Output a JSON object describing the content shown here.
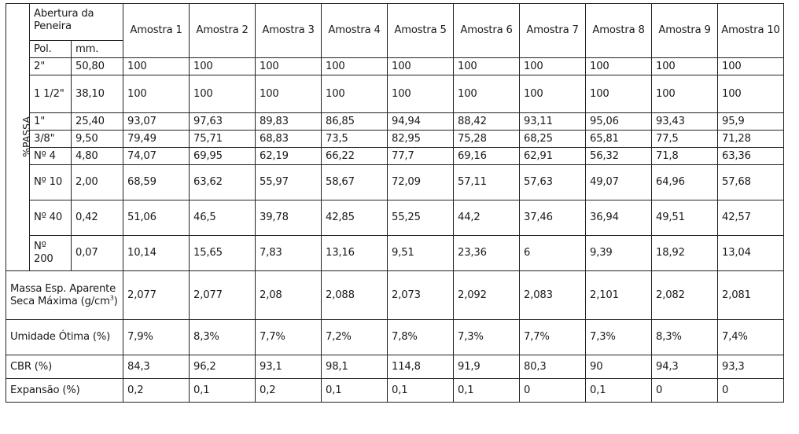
{
  "header": {
    "abertura": "Abertura da Peneira",
    "pol": "Pol.",
    "mm": "mm.",
    "amostras": [
      "Amostra 1",
      "Amostra 2",
      "Amostra 3",
      "Amostra 4",
      "Amostra 5",
      "Amostra 6",
      "Amostra 7",
      "Amostra 8",
      "Amostra 9",
      "Amostra 10"
    ]
  },
  "passa_label": "%PASSA",
  "sieves": [
    {
      "pol": "2\"",
      "mm": "50,80",
      "values": [
        "100",
        "100",
        "100",
        "100",
        "100",
        "100",
        "100",
        "100",
        "100",
        "100"
      ]
    },
    {
      "pol": "1 1/2\"",
      "mm": "38,10",
      "values": [
        "100",
        "100",
        "100",
        "100",
        "100",
        "100",
        "100",
        "100",
        "100",
        "100"
      ]
    },
    {
      "pol": "1\"",
      "mm": "25,40",
      "values": [
        "93,07",
        "97,63",
        "89,83",
        "86,85",
        "94,94",
        "88,42",
        "93,11",
        "95,06",
        "93,43",
        "95,9"
      ]
    },
    {
      "pol": "3/8\"",
      "mm": "9,50",
      "values": [
        "79,49",
        "75,71",
        "68,83",
        "73,5",
        "82,95",
        "75,28",
        "68,25",
        "65,81",
        "77,5",
        "71,28"
      ]
    },
    {
      "pol": "Nº 4",
      "mm": "4,80",
      "values": [
        "74,07",
        "69,95",
        "62,19",
        "66,22",
        "77,7",
        "69,16",
        "62,91",
        "56,32",
        "71,8",
        "63,36"
      ]
    },
    {
      "pol": "Nº 10",
      "mm": "2,00",
      "values": [
        "68,59",
        "63,62",
        "55,97",
        "58,67",
        "72,09",
        "57,11",
        "57,63",
        "49,07",
        "64,96",
        "57,68"
      ]
    },
    {
      "pol": "Nº 40",
      "mm": "0,42",
      "values": [
        "51,06",
        "46,5",
        "39,78",
        "42,85",
        "55,25",
        "44,2",
        "37,46",
        "36,94",
        "49,51",
        "42,57"
      ]
    },
    {
      "pol": "Nº 200",
      "mm": "0,07",
      "values": [
        "10,14",
        "15,65",
        "7,83",
        "13,16",
        "9,51",
        "23,36",
        "6",
        "9,39",
        "18,92",
        "13,04"
      ]
    }
  ],
  "properties": [
    {
      "label": "Massa Esp. Aparente Seca Máxima (g/cm",
      "sup": "3",
      "label_end": ")",
      "values": [
        "2,077",
        "2,077",
        "2,08",
        "2,088",
        "2,073",
        "2,092",
        "2,083",
        "2,101",
        "2,082",
        "2,081"
      ]
    },
    {
      "label": "Umidade Ótima (%)",
      "values": [
        "7,9%",
        "8,3%",
        "7,7%",
        "7,2%",
        "7,8%",
        "7,3%",
        "7,7%",
        "7,3%",
        "8,3%",
        "7,4%"
      ]
    },
    {
      "label": "CBR (%)",
      "values": [
        "84,3",
        "96,2",
        "93,1",
        "98,1",
        "114,8",
        "91,9",
        "80,3",
        "90",
        "94,3",
        "93,3"
      ]
    },
    {
      "label": "Expansão (%)",
      "values": [
        "0,2",
        "0,1",
        "0,2",
        "0,1",
        "0,1",
        "0,1",
        "0",
        "0,1",
        "0",
        "0"
      ]
    }
  ]
}
